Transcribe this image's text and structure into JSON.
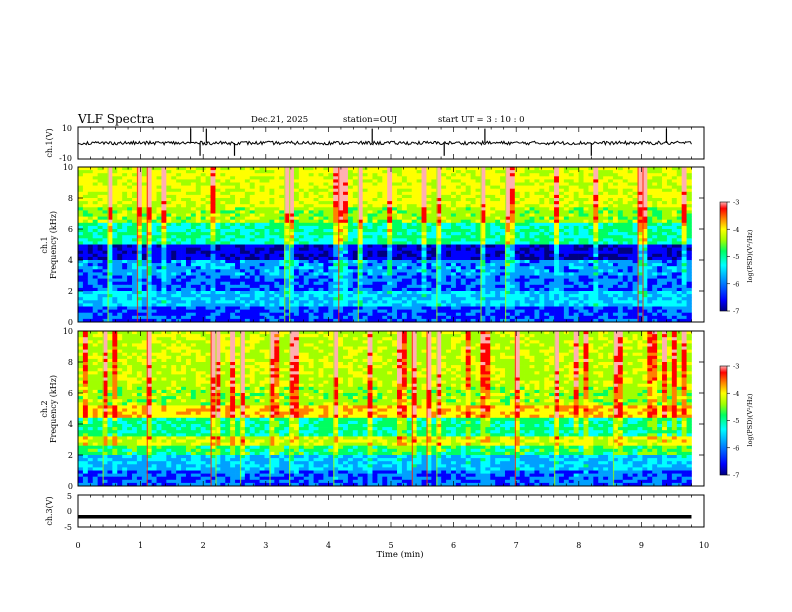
{
  "header": {
    "title": "VLF Spectra",
    "date": "Dec.21, 2025",
    "station": "station=OUJ",
    "start_ut": "start  UT =   3  : 10 : 0"
  },
  "colors": {
    "spectrogram_scale": [
      "#00007f",
      "#0000ff",
      "#00a0ff",
      "#00ffff",
      "#00ff60",
      "#a0ff00",
      "#ffff00",
      "#ff8000",
      "#ff0000",
      "#ffb0b0"
    ]
  },
  "chart_data": [
    {
      "type": "line",
      "panel": "ch1-waveform",
      "ylabel": "ch.1(V)",
      "ylim": [
        -10,
        10
      ],
      "y_ticks": [
        "10",
        "-10"
      ],
      "baseline": 0,
      "note_spikes_x_min": [
        1.8,
        1.95,
        2.05,
        2.5,
        4.7,
        5.85,
        6.5,
        8.2,
        9.4
      ]
    },
    {
      "type": "heatmap",
      "panel": "ch1-spectrogram",
      "ylabel_line1": "ch.1",
      "ylabel_line2": "Frequency (kHz)",
      "ylim": [
        0,
        10
      ],
      "y_ticks": [
        "0",
        "2",
        "4",
        "6",
        "8",
        "10"
      ],
      "colorbar": {
        "label": "log(PSD)(V²/Hz)",
        "range": [
          -7,
          -3
        ],
        "ticks": [
          "-3",
          "-4",
          "-5",
          "-6",
          "-7"
        ]
      },
      "bands_khz": [
        {
          "from": 0,
          "to": 1,
          "level": 0.18
        },
        {
          "from": 1,
          "to": 2,
          "level": 0.3
        },
        {
          "from": 2,
          "to": 3,
          "level": 0.2
        },
        {
          "from": 3,
          "to": 4,
          "level": 0.25
        },
        {
          "from": 4,
          "to": 5,
          "level": 0.12
        },
        {
          "from": 5,
          "to": 6.5,
          "level": 0.4
        },
        {
          "from": 6.5,
          "to": 7.5,
          "level": 0.55
        },
        {
          "from": 7.5,
          "to": 10,
          "level": 0.62
        }
      ]
    },
    {
      "type": "heatmap",
      "panel": "ch2-spectrogram",
      "ylabel_line1": "ch.2",
      "ylabel_line2": "Frequency (kHz)",
      "ylim": [
        0,
        10
      ],
      "y_ticks": [
        "0",
        "2",
        "4",
        "6",
        "8",
        "10"
      ],
      "colorbar": {
        "label": "log(PSD)(V²/Hz)",
        "range": [
          -7,
          -3
        ],
        "ticks": [
          "-3",
          "-4",
          "-5",
          "-6",
          "-7"
        ]
      },
      "bands_khz": [
        {
          "from": 0,
          "to": 1,
          "level": 0.2
        },
        {
          "from": 1,
          "to": 2,
          "level": 0.28
        },
        {
          "from": 2,
          "to": 2.6,
          "level": 0.45
        },
        {
          "from": 2.6,
          "to": 3.2,
          "level": 0.6
        },
        {
          "from": 3.2,
          "to": 4.4,
          "level": 0.42
        },
        {
          "from": 4.4,
          "to": 5.2,
          "level": 0.68
        },
        {
          "from": 5.2,
          "to": 6.5,
          "level": 0.55
        },
        {
          "from": 6.5,
          "to": 10,
          "level": 0.58
        }
      ]
    },
    {
      "type": "line",
      "panel": "ch3-waveform",
      "ylabel": "ch.3(V)",
      "ylim": [
        -5,
        5
      ],
      "y_ticks": [
        "5",
        "0",
        "-5"
      ],
      "baseline": -1.8
    },
    {
      "type": "axis",
      "panel": "time-axis",
      "xlabel": "Time (min)",
      "xlim": [
        0,
        10
      ],
      "x_ticks": [
        "0",
        "1",
        "2",
        "3",
        "4",
        "5",
        "6",
        "7",
        "8",
        "9",
        "10"
      ],
      "data_end_min": 9.8
    }
  ]
}
